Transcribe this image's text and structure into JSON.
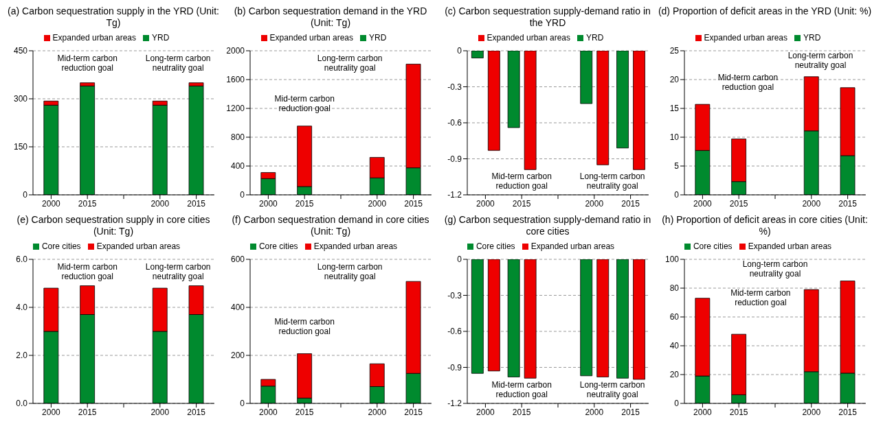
{
  "chart_data": [
    {
      "type": "bar",
      "stacked": true,
      "title": "(a) Carbon sequestration supply in the YRD (Unit: Tg)",
      "categories": [
        "2000",
        "2015",
        null,
        "2000",
        "2015"
      ],
      "series": [
        {
          "name": "YRD",
          "color": "#008a2e",
          "values": [
            280,
            340,
            null,
            280,
            340
          ]
        },
        {
          "name": "Expanded urban areas",
          "color": "#ee0000",
          "values": [
            13,
            10,
            null,
            13,
            10
          ]
        }
      ],
      "ylim": [
        0,
        450
      ],
      "yticks": [
        0,
        150,
        300,
        450
      ],
      "grid": "y",
      "legend": "top",
      "annotations": [
        "Mid-term carbon reduction goal",
        "Long-term carbon neutrality goal"
      ]
    },
    {
      "type": "bar",
      "stacked": true,
      "title": "(b) Carbon sequestration demand in the YRD (Unit: Tg)",
      "categories": [
        "2000",
        "2015",
        null,
        "2000",
        "2015"
      ],
      "series": [
        {
          "name": "YRD",
          "color": "#008a2e",
          "values": [
            225,
            115,
            null,
            235,
            375
          ]
        },
        {
          "name": "Expanded urban areas",
          "color": "#ee0000",
          "values": [
            85,
            840,
            null,
            285,
            1440
          ]
        }
      ],
      "ylim": [
        0,
        2000
      ],
      "yticks": [
        0,
        400,
        800,
        1200,
        1600,
        2000
      ],
      "grid": "y",
      "legend": "top",
      "annotations": [
        "Mid-term carbon reduction goal",
        "Long-term carbon neutrality goal"
      ]
    },
    {
      "type": "bar",
      "title": "(c) Carbon sequestration supply-demand ratio in the YRD",
      "categories": [
        "2000",
        "2015",
        null,
        "2000",
        "2015"
      ],
      "series": [
        {
          "name": "YRD",
          "color": "#008a2e",
          "values": [
            -0.06,
            -0.64,
            null,
            -0.44,
            -0.81
          ]
        },
        {
          "name": "Expanded urban areas",
          "color": "#ee0000",
          "values": [
            -0.83,
            -0.99,
            null,
            -0.95,
            -0.99
          ]
        }
      ],
      "ylim": [
        -1.2,
        0
      ],
      "yticks": [
        -1.2,
        -0.9,
        -0.6,
        -0.3,
        0
      ],
      "grid": "y",
      "legend": "top",
      "annotations": [
        "Mid-term carbon reduction goal",
        "Long-term carbon neutrality goal"
      ]
    },
    {
      "type": "bar",
      "stacked": true,
      "title": "(d) Proportion of deficit areas in the YRD (Unit: %)",
      "categories": [
        "2000",
        "2015",
        null,
        "2000",
        "2015"
      ],
      "series": [
        {
          "name": "YRD",
          "color": "#008a2e",
          "values": [
            7.7,
            2.3,
            null,
            11.1,
            6.8
          ]
        },
        {
          "name": "Expanded urban areas",
          "color": "#ee0000",
          "values": [
            8.0,
            7.4,
            null,
            9.4,
            11.8
          ]
        }
      ],
      "ylim": [
        0,
        25
      ],
      "yticks": [
        0,
        5,
        10,
        15,
        20,
        25
      ],
      "grid": "y",
      "legend": "top",
      "annotations": [
        "Mid-term carbon reduction goal",
        "Long-term carbon neutrality goal"
      ]
    },
    {
      "type": "bar",
      "stacked": true,
      "title": "(e) Carbon sequestration supply in core cities (Unit: Tg)",
      "categories": [
        "2000",
        "2015",
        null,
        "2000",
        "2015"
      ],
      "series": [
        {
          "name": "Core cities",
          "color": "#008a2e",
          "values": [
            3.0,
            3.7,
            null,
            3.0,
            3.7
          ]
        },
        {
          "name": "Expanded urban areas",
          "color": "#ee0000",
          "values": [
            1.8,
            1.2,
            null,
            1.8,
            1.2
          ]
        }
      ],
      "ylim": [
        0,
        6
      ],
      "yticks": [
        {
          "value": 0,
          "label": "0.0"
        },
        {
          "value": 2,
          "label": "2.0"
        },
        {
          "value": 4,
          "label": "4.0"
        },
        {
          "value": 6,
          "label": "6.0"
        }
      ],
      "grid": "y",
      "legend": "top",
      "annotations": [
        "Mid-term carbon reduction goal",
        "Long-term carbon neutrality goal"
      ]
    },
    {
      "type": "bar",
      "stacked": true,
      "title": "(f) Carbon sequestration demand in core cities (Unit: Tg)",
      "categories": [
        "2000",
        "2015",
        null,
        "2000",
        "2015"
      ],
      "series": [
        {
          "name": "Core cities",
          "color": "#008a2e",
          "values": [
            72,
            22,
            null,
            70,
            125
          ]
        },
        {
          "name": "Expanded urban areas",
          "color": "#ee0000",
          "values": [
            28,
            185,
            null,
            95,
            383
          ]
        }
      ],
      "ylim": [
        0,
        600
      ],
      "yticks": [
        0,
        200,
        400,
        600
      ],
      "grid": "y",
      "legend": "top",
      "annotations": [
        "Mid-term carbon reduction goal",
        "Long-term carbon neutrality goal"
      ]
    },
    {
      "type": "bar",
      "title": "(g) Carbon sequestration supply-demand ratio in core cities",
      "categories": [
        "2000",
        "2015",
        null,
        "2000",
        "2015"
      ],
      "series": [
        {
          "name": "Core cities",
          "color": "#008a2e",
          "values": [
            -0.95,
            -0.98,
            null,
            -0.97,
            -0.99
          ]
        },
        {
          "name": "Expanded urban areas",
          "color": "#ee0000",
          "values": [
            -0.93,
            -0.99,
            null,
            -0.98,
            -1.0
          ]
        }
      ],
      "ylim": [
        -1.2,
        0
      ],
      "yticks": [
        -1.2,
        -0.9,
        -0.6,
        -0.3,
        0
      ],
      "grid": "y",
      "legend": "top",
      "annotations": [
        "Mid-term carbon reduction goal",
        "Long-term carbon neutrality goal"
      ]
    },
    {
      "type": "bar",
      "stacked": true,
      "title": "(h) Proportion of deficit areas in core cities (Unit: %)",
      "categories": [
        "2000",
        "2015",
        null,
        "2000",
        "2015"
      ],
      "series": [
        {
          "name": "Core cities",
          "color": "#008a2e",
          "values": [
            19,
            6,
            null,
            22,
            21
          ]
        },
        {
          "name": "Expanded urban areas",
          "color": "#ee0000",
          "values": [
            54,
            42,
            null,
            57,
            64
          ]
        }
      ],
      "ylim": [
        0,
        100
      ],
      "yticks": [
        0,
        20,
        40,
        60,
        80,
        100
      ],
      "grid": "y",
      "legend": "top",
      "annotations": [
        "Mid-term carbon reduction goal",
        "Long-term carbon neutrality goal"
      ]
    }
  ]
}
